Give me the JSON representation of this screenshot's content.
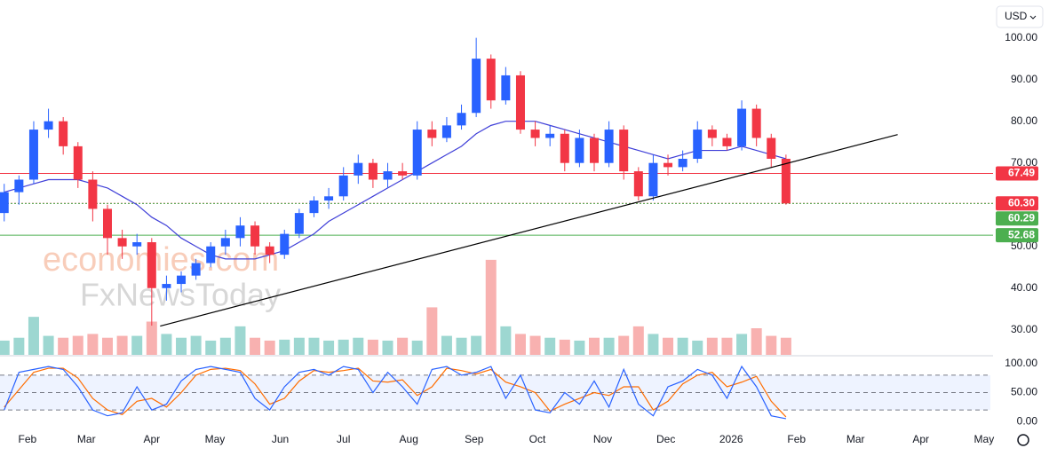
{
  "chart_data": {
    "type": "candlestick",
    "currency": "USD",
    "watermark": [
      "economies.com",
      "FxNewsToday"
    ],
    "x": [
      20,
      27,
      34,
      41,
      48,
      55,
      62,
      69,
      76,
      83,
      90,
      97,
      104,
      111,
      118,
      125,
      132,
      139,
      146,
      153,
      160,
      167,
      174,
      181,
      188,
      195,
      202,
      209,
      216,
      223,
      230,
      237,
      244,
      251,
      258,
      265,
      272,
      279,
      286,
      293,
      300,
      307,
      314,
      321,
      328,
      335,
      342,
      349,
      356,
      363,
      370,
      377,
      384,
      391
    ],
    "open": [
      58,
      63,
      66,
      78,
      80,
      74,
      66,
      59,
      52,
      50,
      51,
      40,
      41,
      43,
      46,
      50,
      52,
      55,
      50,
      48,
      53,
      58,
      61,
      62,
      67,
      70,
      66,
      68,
      67,
      78,
      76,
      79,
      82,
      95,
      85,
      91,
      78,
      76,
      77,
      70,
      76,
      70,
      78,
      68,
      62,
      70,
      69,
      71,
      78,
      76,
      74,
      83,
      76,
      71
    ],
    "high": [
      65,
      67,
      80,
      83,
      81,
      75,
      68,
      60,
      54,
      53,
      52,
      43,
      44,
      47,
      51,
      54,
      57,
      56,
      51,
      54,
      59,
      62,
      64,
      69,
      72,
      71,
      70,
      70,
      80,
      80,
      81,
      84,
      100,
      96,
      93,
      92,
      80,
      79,
      78,
      78,
      77,
      80,
      79,
      69,
      72,
      72,
      73,
      80,
      79,
      77,
      85,
      84,
      77,
      72
    ],
    "low": [
      56,
      60,
      65,
      76,
      72,
      64,
      56,
      48,
      47,
      48,
      31,
      37,
      39,
      42,
      45,
      48,
      50,
      48,
      46,
      47,
      52,
      57,
      59,
      61,
      65,
      64,
      64,
      66,
      66,
      74,
      75,
      78,
      81,
      83,
      84,
      77,
      74,
      74,
      68,
      69,
      68,
      69,
      66,
      61,
      61,
      67,
      68,
      70,
      74,
      73,
      73,
      74,
      69,
      60
    ],
    "close": [
      63,
      66,
      78,
      80,
      74,
      66,
      59,
      52,
      50,
      51,
      40,
      41,
      43,
      46,
      50,
      52,
      55,
      50,
      48,
      53,
      58,
      61,
      62,
      67,
      70,
      66,
      68,
      67,
      78,
      76,
      79,
      82,
      95,
      85,
      91,
      78,
      76,
      77,
      70,
      76,
      70,
      78,
      68,
      62,
      70,
      69,
      71,
      78,
      76,
      74,
      83,
      76,
      71,
      60.3
    ],
    "up_color": "#2962ff",
    "down_color": "#f23645",
    "volume": [
      15,
      18,
      40,
      20,
      18,
      20,
      22,
      18,
      20,
      20,
      35,
      22,
      18,
      20,
      15,
      18,
      30,
      18,
      15,
      16,
      18,
      18,
      15,
      16,
      18,
      16,
      15,
      18,
      15,
      50,
      20,
      18,
      20,
      100,
      30,
      22,
      20,
      18,
      16,
      15,
      18,
      18,
      20,
      30,
      22,
      18,
      18,
      15,
      18,
      18,
      22,
      28,
      20,
      18
    ],
    "volume_lim": [
      0,
      140
    ],
    "ma": {
      "color": "#3f3fd8",
      "values": [
        63,
        64,
        65,
        66,
        66,
        66,
        65,
        64,
        62,
        60,
        57,
        55,
        52,
        50,
        48,
        47,
        47,
        47,
        48,
        49,
        51,
        53,
        56,
        58,
        60,
        62,
        64,
        66,
        68,
        70,
        72,
        74,
        77,
        79,
        80,
        80,
        80,
        79,
        78,
        77,
        76,
        75,
        74,
        73,
        72,
        71,
        72,
        73,
        73,
        73,
        74,
        73,
        72,
        71
      ]
    },
    "trendline": {
      "x": [
        94,
        444
      ],
      "y": [
        30.9,
        76.8
      ],
      "color": "#000000"
    },
    "levels": [
      {
        "value": 67.49,
        "color": "#f23645"
      },
      {
        "value": 60.3,
        "label": "60.30",
        "color": "#f23645"
      },
      {
        "value": 60.29,
        "color": "#4caf50"
      },
      {
        "value": 52.68,
        "color": "#4caf50"
      }
    ],
    "xlim": [
      18,
      488
    ],
    "xticks": [
      {
        "value": 31,
        "label": "Feb"
      },
      {
        "value": 59,
        "label": "Mar"
      },
      {
        "value": 90,
        "label": "Apr"
      },
      {
        "value": 120,
        "label": "May"
      },
      {
        "value": 151,
        "label": "Jun"
      },
      {
        "value": 181,
        "label": "Jul"
      },
      {
        "value": 212,
        "label": "Aug"
      },
      {
        "value": 243,
        "label": "Sep"
      },
      {
        "value": 273,
        "label": "Oct"
      },
      {
        "value": 304,
        "label": "Nov"
      },
      {
        "value": 334,
        "label": "Dec"
      },
      {
        "value": 365,
        "label": "2026"
      },
      {
        "value": 396,
        "label": "Feb"
      },
      {
        "value": 424,
        "label": "Mar"
      },
      {
        "value": 455,
        "label": "Apr"
      },
      {
        "value": 485,
        "label": "May"
      }
    ],
    "ylim": [
      24,
      108
    ],
    "yticks": [
      {
        "value": 30,
        "label": "30.00"
      },
      {
        "value": 40,
        "label": "40.00"
      },
      {
        "value": 50,
        "label": "50.00"
      },
      {
        "value": 60,
        "label": "60.00"
      },
      {
        "value": 70,
        "label": "70.00"
      },
      {
        "value": 80,
        "label": "80.00"
      },
      {
        "value": 90,
        "label": "90.00"
      },
      {
        "value": 100,
        "label": "100.00"
      }
    ],
    "stochastic": {
      "ylim": [
        -15,
        112
      ],
      "yticks": [
        {
          "value": 0,
          "label": "0.00"
        },
        {
          "value": 50,
          "label": "50.00"
        },
        {
          "value": 100,
          "label": "100.00"
        }
      ],
      "band": [
        20,
        80
      ],
      "k": {
        "color": "#2962ff",
        "values": [
          20,
          85,
          90,
          95,
          90,
          60,
          20,
          10,
          15,
          60,
          20,
          30,
          70,
          90,
          95,
          90,
          85,
          40,
          20,
          60,
          85,
          90,
          80,
          95,
          90,
          50,
          85,
          60,
          30,
          90,
          95,
          80,
          85,
          95,
          40,
          80,
          20,
          15,
          50,
          30,
          70,
          25,
          90,
          30,
          10,
          60,
          70,
          90,
          80,
          40,
          95,
          60,
          10,
          5
        ]
      },
      "d": {
        "color": "#ff6d00",
        "values": [
          25,
          55,
          85,
          92,
          92,
          75,
          40,
          20,
          12,
          35,
          40,
          25,
          50,
          80,
          90,
          92,
          88,
          65,
          30,
          40,
          70,
          88,
          85,
          88,
          92,
          70,
          68,
          72,
          45,
          60,
          92,
          88,
          82,
          90,
          68,
          60,
          50,
          18,
          30,
          40,
          50,
          45,
          60,
          60,
          20,
          35,
          65,
          80,
          85,
          60,
          68,
          78,
          35,
          8
        ]
      }
    }
  }
}
